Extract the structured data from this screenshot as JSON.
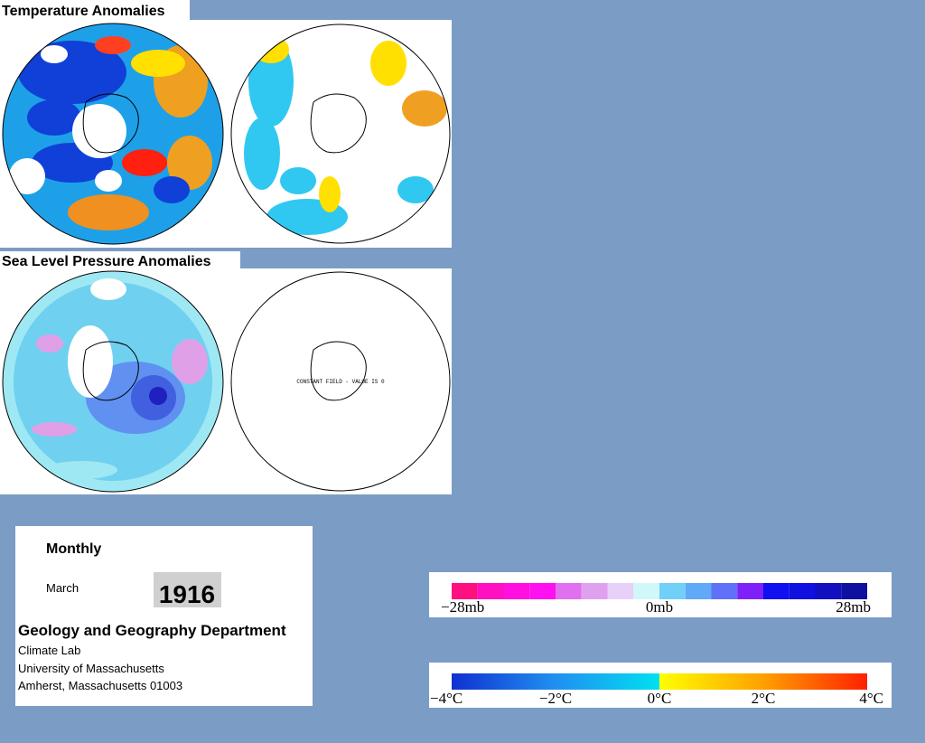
{
  "panels": [
    {
      "title": "Temperature Anomalies"
    },
    {
      "title": "Sea Level Pressure Anomalies",
      "note": "CONSTANT FIELD - VALUE IS 0"
    }
  ],
  "info": {
    "period": "Monthly",
    "month": "March",
    "year": "1916",
    "department": "Geology and Geography Department",
    "lines": [
      "Climate Lab",
      "University of Massachusetts",
      "Amherst, Massachusetts 01003"
    ]
  },
  "legends": {
    "pressure": [
      "−28mb",
      "0mb",
      "28mb"
    ],
    "temperature": [
      "−4°C",
      "−2°C",
      "0°C",
      "2°C",
      "4°C"
    ]
  }
}
